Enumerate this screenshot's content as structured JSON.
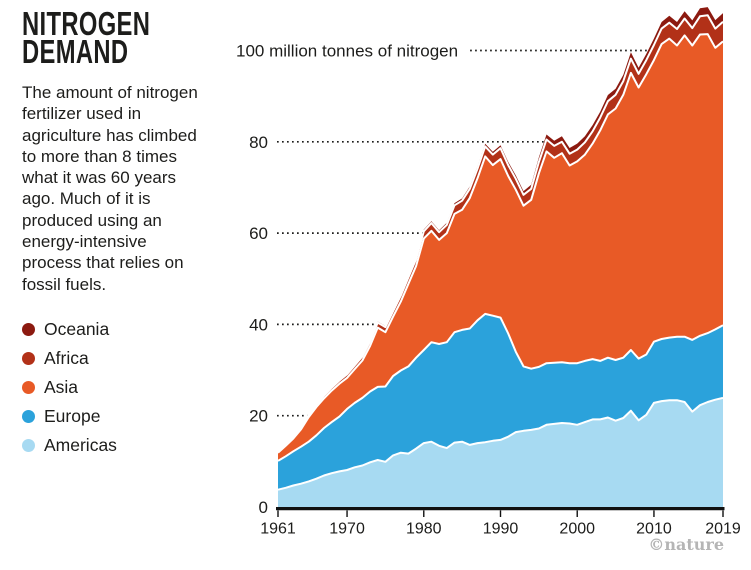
{
  "infographic": {
    "title_line1": "NITROGEN",
    "title_line2": "DEMAND",
    "description": "The amount of nitrogen fertilizer used in agriculture has climbed to more than 8 times what it was 60 years ago. Much of it is produced using an energy-intensive process that relies on fossil fuels.",
    "credit": "©nature"
  },
  "legend": [
    {
      "label": "Oceania",
      "color": "#8C1A10"
    },
    {
      "label": "Africa",
      "color": "#B23118"
    },
    {
      "label": "Asia",
      "color": "#E85A26"
    },
    {
      "label": "Europe",
      "color": "#2BA2DB"
    },
    {
      "label": "Americas",
      "color": "#A7DAF2"
    }
  ],
  "chart_data": {
    "type": "area",
    "stacked": true,
    "title": "Nitrogen demand",
    "unit_label": "100 million tonnes of nitrogen",
    "ylabel": "million tonnes of nitrogen",
    "xlabel": "",
    "ylim": [
      0,
      113
    ],
    "grid": "horizontal dotted lines, clipped where the area begins",
    "legend_position": "left",
    "x_ticks": [
      1961,
      1970,
      1980,
      1990,
      2000,
      2010,
      2019
    ],
    "y_ticks": [
      0,
      20,
      40,
      60,
      80,
      100
    ],
    "x": [
      1961,
      1962,
      1963,
      1964,
      1965,
      1966,
      1967,
      1968,
      1969,
      1970,
      1971,
      1972,
      1973,
      1974,
      1975,
      1976,
      1977,
      1978,
      1979,
      1980,
      1981,
      1982,
      1983,
      1984,
      1985,
      1986,
      1987,
      1988,
      1989,
      1990,
      1991,
      1992,
      1993,
      1994,
      1995,
      1996,
      1997,
      1998,
      1999,
      2000,
      2001,
      2002,
      2003,
      2004,
      2005,
      2006,
      2007,
      2008,
      2009,
      2010,
      2011,
      2012,
      2013,
      2014,
      2015,
      2016,
      2017,
      2018,
      2019
    ],
    "series": [
      {
        "name": "Americas",
        "color": "#A7DAF2",
        "values": [
          3.8,
          4.2,
          4.7,
          5.1,
          5.6,
          6.2,
          6.9,
          7.4,
          7.8,
          8.1,
          8.7,
          9.1,
          9.8,
          10.3,
          9.9,
          11.3,
          11.9,
          11.7,
          12.8,
          14.0,
          14.3,
          13.4,
          12.9,
          14.1,
          14.3,
          13.6,
          14.0,
          14.2,
          14.5,
          14.7,
          15.4,
          16.4,
          16.7,
          16.9,
          17.2,
          18.0,
          18.2,
          18.4,
          18.3,
          18.0,
          18.6,
          19.2,
          19.2,
          19.6,
          18.9,
          19.5,
          21.1,
          19.0,
          20.2,
          22.8,
          23.2,
          23.4,
          23.4,
          23.0,
          20.9,
          22.3,
          23.0,
          23.5,
          23.9
        ]
      },
      {
        "name": "Europe",
        "color": "#2BA2DB",
        "values": [
          6.3,
          6.9,
          7.5,
          8.1,
          8.7,
          9.5,
          10.4,
          11.2,
          12.0,
          13.4,
          14.1,
          14.8,
          15.5,
          16.0,
          16.5,
          17.4,
          18.0,
          19.1,
          19.9,
          20.4,
          21.8,
          22.3,
          23.2,
          24.2,
          24.5,
          25.5,
          26.9,
          28.1,
          27.4,
          26.8,
          22.6,
          17.6,
          14.1,
          13.4,
          13.5,
          13.5,
          13.4,
          13.3,
          13.2,
          13.5,
          13.4,
          13.2,
          12.8,
          13.1,
          13.3,
          13.2,
          13.3,
          13.5,
          13.2,
          13.4,
          13.6,
          13.7,
          13.9,
          14.3,
          15.7,
          15.2,
          15.1,
          15.4,
          15.9
        ]
      },
      {
        "name": "Asia",
        "color": "#E85A26",
        "values": [
          1.8,
          2.3,
          2.8,
          3.8,
          5.4,
          6.2,
          6.5,
          6.9,
          7.2,
          6.8,
          7.4,
          8.2,
          10.0,
          13.0,
          11.9,
          13.0,
          15.1,
          18.1,
          20.1,
          24.4,
          24.4,
          22.8,
          23.9,
          25.9,
          26.3,
          28.6,
          31.1,
          34.5,
          33.0,
          34.7,
          34.5,
          35.5,
          35.2,
          37.0,
          42.4,
          46.4,
          44.9,
          45.8,
          43.3,
          44.2,
          45.2,
          47.2,
          50.5,
          53.3,
          55.1,
          57.6,
          60.7,
          59.4,
          61.4,
          61.7,
          64.6,
          65.5,
          63.8,
          66.0,
          64.5,
          66.0,
          65.5,
          61.7,
          62.2
        ]
      },
      {
        "name": "Africa",
        "color": "#B23118",
        "values": [
          0.3,
          0.35,
          0.4,
          0.45,
          0.5,
          0.55,
          0.6,
          0.65,
          0.7,
          0.8,
          0.85,
          0.9,
          1.0,
          1.1,
          1.1,
          1.2,
          1.3,
          1.4,
          1.5,
          1.6,
          1.7,
          1.7,
          1.8,
          1.9,
          2.0,
          2.0,
          2.1,
          2.2,
          2.3,
          2.4,
          2.4,
          2.4,
          2.4,
          2.4,
          2.5,
          2.6,
          2.6,
          2.5,
          2.6,
          2.6,
          2.7,
          2.7,
          2.8,
          2.9,
          3.0,
          3.0,
          3.1,
          3.0,
          3.1,
          3.3,
          3.4,
          3.5,
          3.6,
          3.7,
          3.8,
          4.0,
          4.1,
          4.2,
          4.3
        ]
      },
      {
        "name": "Oceania",
        "color": "#8C1A10",
        "values": [
          0.05,
          0.06,
          0.07,
          0.08,
          0.09,
          0.1,
          0.11,
          0.12,
          0.13,
          0.15,
          0.17,
          0.19,
          0.21,
          0.23,
          0.25,
          0.27,
          0.3,
          0.32,
          0.35,
          0.38,
          0.4,
          0.42,
          0.45,
          0.48,
          0.5,
          0.52,
          0.55,
          0.58,
          0.6,
          0.65,
          0.7,
          0.75,
          0.8,
          0.9,
          1.0,
          1.1,
          1.15,
          1.2,
          1.25,
          1.3,
          1.3,
          1.35,
          1.3,
          1.35,
          1.3,
          1.35,
          1.4,
          1.3,
          1.35,
          1.4,
          1.45,
          1.5,
          1.55,
          1.6,
          1.7,
          1.75,
          1.8,
          1.85,
          1.9
        ]
      }
    ]
  }
}
